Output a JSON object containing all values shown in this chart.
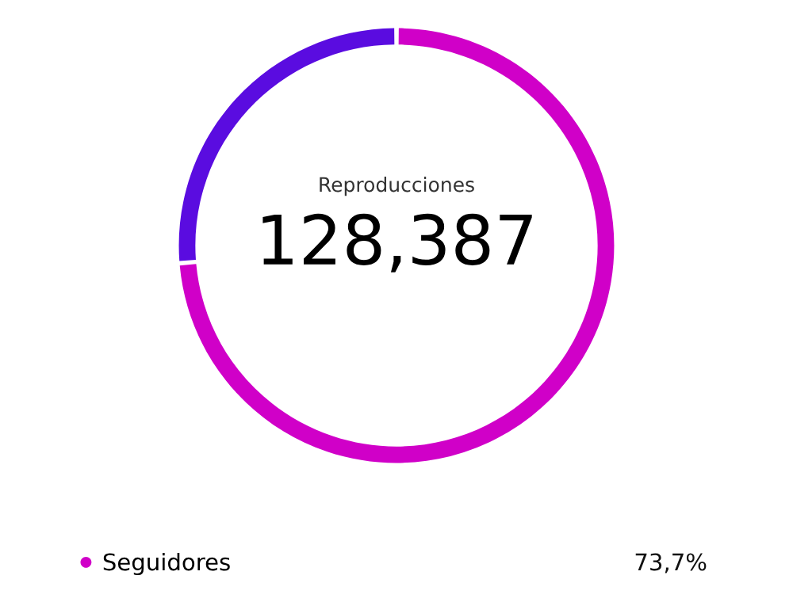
{
  "chart_data": {
    "type": "donut",
    "categories": [
      "Seguidores",
      null
    ],
    "values": [
      73.7,
      26.3
    ],
    "colors": [
      "#d000c8",
      "#5a0ce0"
    ],
    "value_labels": [
      "73,7%",
      null
    ],
    "legend": "bottom",
    "annotations": [
      "Reproducciones",
      "128,387"
    ]
  }
}
